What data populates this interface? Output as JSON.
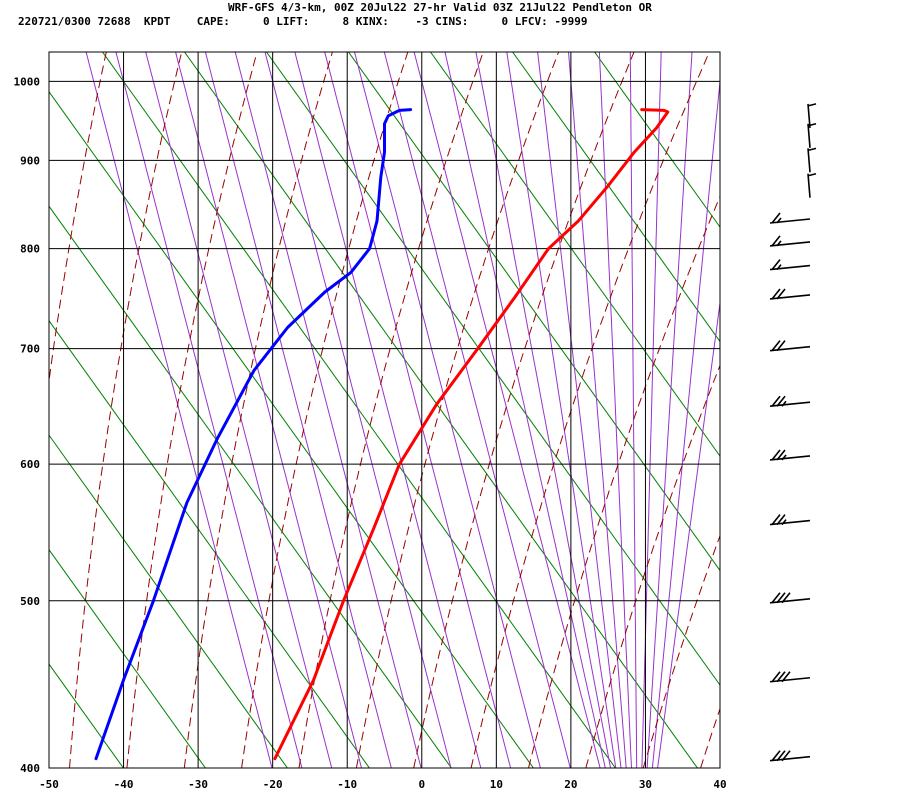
{
  "header": {
    "line1": "WRF-GFS 4/3-km, 00Z 20Jul22 27-hr Valid 03Z 21Jul22 Pendleton OR",
    "line2": "220721/0300 72688  KPDT    CAPE:     0 LIFT:     8 KINX:    -3 CINS:     0 LFCV: -9999"
  },
  "chart_data": {
    "type": "line",
    "title": "WRF-GFS 4/3-km, 00Z 20Jul22 27-hr Valid 03Z 21Jul22 Pendleton OR",
    "subtitle": "220721/0300 72688  KPDT    CAPE:     0 LIFT:     8 KINX:    -3 CINS:     0 LFCV: -9999",
    "xlim": [
      -50,
      40
    ],
    "ylim": [
      1040,
      400
    ],
    "y_scale": "log",
    "x_ticks": [
      -50,
      -40,
      -30,
      -20,
      -10,
      0,
      10,
      20,
      30,
      40
    ],
    "y_ticks": [
      400,
      500,
      600,
      700,
      800,
      900,
      1000
    ],
    "grid": true,
    "series": [
      {
        "color": "#ff0000",
        "points": [
          [
            -19.7,
            405
          ],
          [
            -14.5,
            450
          ],
          [
            -10.5,
            500
          ],
          [
            -6.5,
            550
          ],
          [
            -3,
            600
          ],
          [
            2,
            650
          ],
          [
            7.5,
            700
          ],
          [
            12.5,
            750
          ],
          [
            17,
            800
          ],
          [
            21,
            830
          ],
          [
            25,
            870
          ],
          [
            28.5,
            910
          ],
          [
            31.5,
            940
          ],
          [
            33,
            960
          ],
          [
            32.5,
            962
          ],
          [
            29.5,
            963
          ]
        ]
      },
      {
        "color": "#0000ff",
        "points": [
          [
            -43.7,
            405
          ],
          [
            -40,
            450
          ],
          [
            -36,
            500
          ],
          [
            -31.5,
            570
          ],
          [
            -27.5,
            620
          ],
          [
            -22.5,
            680
          ],
          [
            -18,
            720
          ],
          [
            -13,
            755
          ],
          [
            -9.5,
            775
          ],
          [
            -7,
            800
          ],
          [
            -6,
            830
          ],
          [
            -5.5,
            880
          ],
          [
            -5,
            910
          ],
          [
            -5,
            945
          ],
          [
            -4.5,
            955
          ],
          [
            -3,
            962
          ],
          [
            -1.5,
            963
          ]
        ]
      }
    ],
    "wind_barbs": [
      {
        "pressure": 405,
        "barbs": 3
      },
      {
        "pressure": 450,
        "barbs": 3
      },
      {
        "pressure": 500,
        "barbs": 3
      },
      {
        "pressure": 555,
        "barbs": 2.5
      },
      {
        "pressure": 605,
        "barbs": 2.5
      },
      {
        "pressure": 650,
        "barbs": 2.5
      },
      {
        "pressure": 700,
        "barbs": 2
      },
      {
        "pressure": 750,
        "barbs": 2
      },
      {
        "pressure": 780,
        "barbs": 1.5
      },
      {
        "pressure": 805,
        "barbs": 1.5
      },
      {
        "pressure": 830,
        "barbs": 1.5
      },
      {
        "pressure": 870,
        "barbs": 1
      },
      {
        "pressure": 900,
        "barbs": 1
      },
      {
        "pressure": 930,
        "barbs": 1
      },
      {
        "pressure": 955,
        "barbs": 1
      }
    ]
  },
  "colors": {
    "isotherm_grid": "#000000",
    "dry_adiabat": "#990000",
    "moist_adiabat": "#9933cc",
    "mixing_ratio": "#008000",
    "temperature": "#ff0000",
    "dewpoint": "#0000ff"
  }
}
